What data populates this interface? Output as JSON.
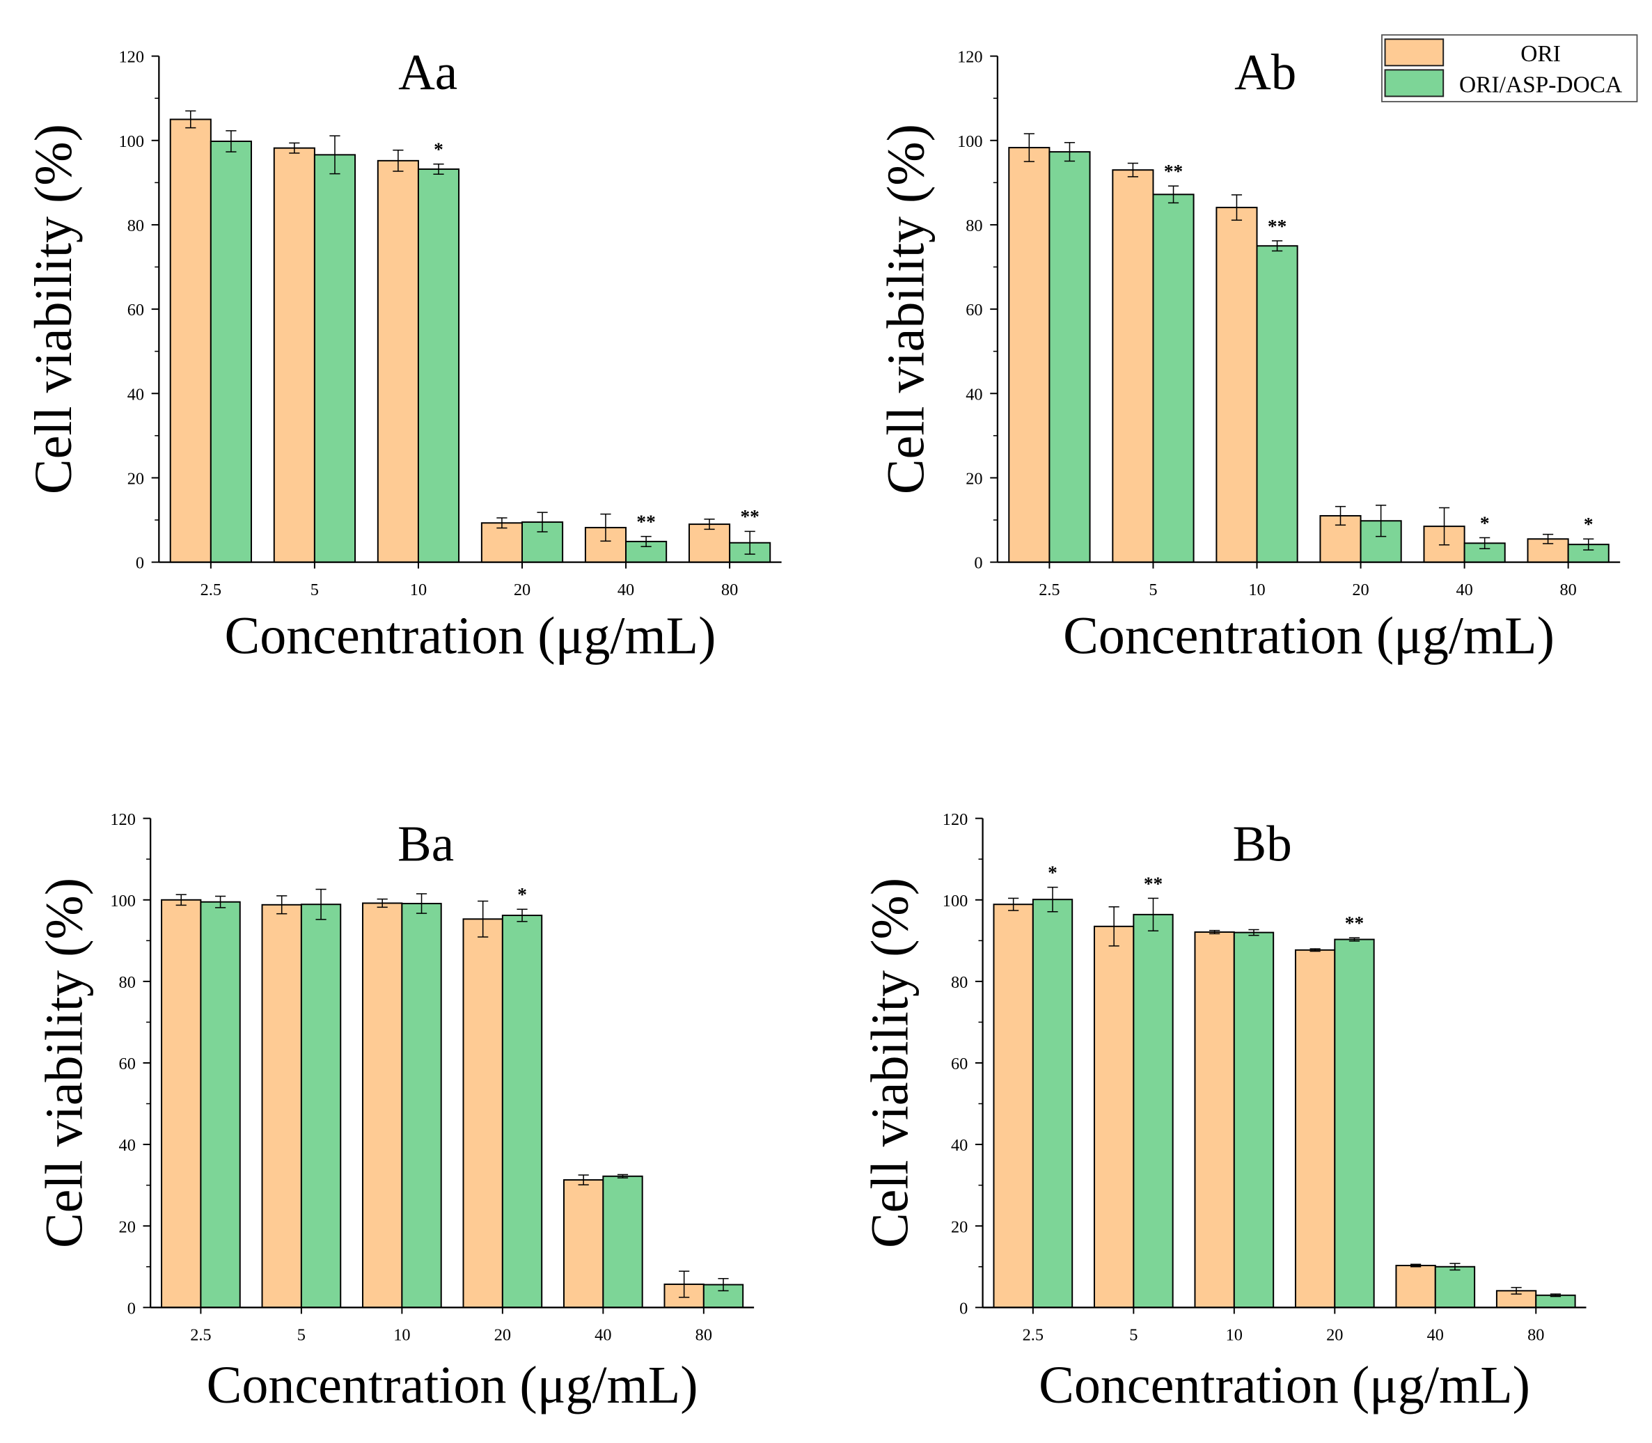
{
  "colors": {
    "ori": "#FECB94",
    "ori_asp_doca": "#7DD597",
    "axis": "#000000"
  },
  "legend": {
    "placement": "top-right",
    "entries": [
      "ORI",
      "ORI/ASP-DOCA"
    ]
  },
  "chart_data": [
    {
      "type": "bar",
      "title": "Aa",
      "xlabel": "Concentration (μg/mL)",
      "ylabel": "Cell viability (%)",
      "ylim": [
        0,
        120
      ],
      "yticks": [
        "0",
        "20",
        "40",
        "60",
        "80",
        "100",
        "120"
      ],
      "categories": [
        "2.5",
        "5",
        "10",
        "20",
        "40",
        "80"
      ],
      "series": [
        {
          "name": "ORI",
          "values": [
            105,
            98.2,
            95.2,
            9.3,
            8.2,
            9.0
          ],
          "errors": [
            2,
            1.2,
            2.5,
            1.2,
            3.2,
            1.2
          ],
          "significance": [
            "",
            "",
            "",
            "",
            "",
            ""
          ]
        },
        {
          "name": "ORI/ASP-DOCA",
          "values": [
            99.8,
            96.6,
            93.2,
            9.5,
            4.9,
            4.6
          ],
          "errors": [
            2.5,
            4.5,
            1.2,
            2.3,
            1.2,
            2.7
          ],
          "significance": [
            "",
            "",
            "*",
            "",
            "**",
            "**"
          ]
        }
      ]
    },
    {
      "type": "bar",
      "title": "Ab",
      "xlabel": "Concentration (μg/mL)",
      "ylabel": "Cell viability (%)",
      "ylim": [
        0,
        120
      ],
      "yticks": [
        "0",
        "20",
        "40",
        "60",
        "80",
        "100",
        "120"
      ],
      "categories": [
        "2.5",
        "5",
        "10",
        "20",
        "40",
        "80"
      ],
      "series": [
        {
          "name": "ORI",
          "values": [
            98.3,
            93.0,
            84.1,
            11.0,
            8.5,
            5.5
          ],
          "errors": [
            3.3,
            1.6,
            3.0,
            2.2,
            4.4,
            1.1
          ],
          "significance": [
            "",
            "",
            "",
            "",
            "",
            ""
          ]
        },
        {
          "name": "ORI/ASP-DOCA",
          "values": [
            97.3,
            87.2,
            75.0,
            9.8,
            4.5,
            4.2
          ],
          "errors": [
            2.2,
            2.0,
            1.2,
            3.7,
            1.3,
            1.3
          ],
          "significance": [
            "",
            "**",
            "**",
            "",
            "*",
            "*"
          ]
        }
      ]
    },
    {
      "type": "bar",
      "title": "Ba",
      "xlabel": "Concentration (μg/mL)",
      "ylabel": "Cell viability (%)",
      "ylim": [
        0,
        120
      ],
      "yticks": [
        "0",
        "20",
        "40",
        "60",
        "80",
        "100",
        "120"
      ],
      "categories": [
        "2.5",
        "5",
        "10",
        "20",
        "40",
        "80"
      ],
      "series": [
        {
          "name": "ORI",
          "values": [
            100.0,
            98.8,
            99.2,
            95.3,
            31.3,
            5.7
          ],
          "errors": [
            1.3,
            2.2,
            1.0,
            4.4,
            1.2,
            3.2
          ],
          "significance": [
            "",
            "",
            "",
            "",
            "",
            ""
          ]
        },
        {
          "name": "ORI/ASP-DOCA",
          "values": [
            99.5,
            98.9,
            99.1,
            96.2,
            32.2,
            5.6
          ],
          "errors": [
            1.4,
            3.7,
            2.4,
            1.5,
            0.4,
            1.5
          ],
          "significance": [
            "",
            "",
            "",
            "*",
            "",
            ""
          ]
        }
      ]
    },
    {
      "type": "bar",
      "title": "Bb",
      "xlabel": "Concentration (μg/mL)",
      "ylabel": "Cell viability (%)",
      "ylim": [
        0,
        120
      ],
      "yticks": [
        "0",
        "20",
        "40",
        "60",
        "80",
        "100",
        "120"
      ],
      "categories": [
        "2.5",
        "5",
        "10",
        "20",
        "40",
        "80"
      ],
      "series": [
        {
          "name": "ORI",
          "values": [
            98.9,
            93.5,
            92.1,
            87.7,
            10.3,
            4.1
          ],
          "errors": [
            1.5,
            4.8,
            0.4,
            0.3,
            0.3,
            0.8
          ],
          "significance": [
            "",
            "",
            "",
            "",
            "",
            ""
          ]
        },
        {
          "name": "ORI/ASP-DOCA",
          "values": [
            100.1,
            96.4,
            92.0,
            90.3,
            10.0,
            3.0
          ],
          "errors": [
            3.0,
            4.0,
            0.7,
            0.4,
            0.8,
            0.3
          ],
          "significance": [
            "*",
            "**",
            "",
            "**",
            "",
            ""
          ]
        }
      ]
    }
  ]
}
